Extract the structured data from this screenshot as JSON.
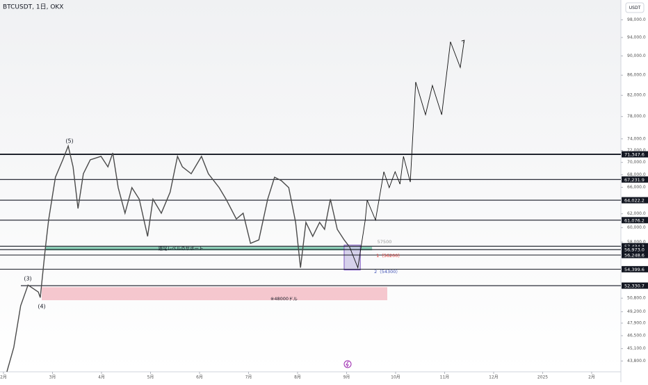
{
  "chart_data": {
    "type": "line",
    "title": "BTCUSDT, 1日, OKX",
    "currency": "USDT",
    "log": true,
    "xlim": [
      -0.071,
      12.596
    ],
    "ylim": [
      42700,
      102700
    ],
    "xticks": [
      {
        "value": 0,
        "label": "2月"
      },
      {
        "value": 1,
        "label": "3月"
      },
      {
        "value": 2,
        "label": "4月"
      },
      {
        "value": 3,
        "label": "5月"
      },
      {
        "value": 4,
        "label": "6月"
      },
      {
        "value": 5,
        "label": "7月"
      },
      {
        "value": 6,
        "label": "8月"
      },
      {
        "value": 7,
        "label": "9月"
      },
      {
        "value": 8,
        "label": "10月"
      },
      {
        "value": 9,
        "label": "11月"
      },
      {
        "value": 10,
        "label": "12月"
      },
      {
        "value": 11,
        "label": "2025"
      },
      {
        "value": 12,
        "label": "2月"
      }
    ],
    "yticks": [
      {
        "value": 98000,
        "label": "98,000.0"
      },
      {
        "value": 94000,
        "label": "94,000.0"
      },
      {
        "value": 90000,
        "label": "90,000.0"
      },
      {
        "value": 86000,
        "label": "86,000.0"
      },
      {
        "value": 82000,
        "label": "82,000.0"
      },
      {
        "value": 78000,
        "label": "78,000.0"
      },
      {
        "value": 74000,
        "label": "74,000.0"
      },
      {
        "value": 72000,
        "label": "72,000.0"
      },
      {
        "value": 70000,
        "label": "70,000.0"
      },
      {
        "value": 68000,
        "label": "68,000.0"
      },
      {
        "value": 66000,
        "label": "66,000.0"
      },
      {
        "value": 62000,
        "label": "62,000.0"
      },
      {
        "value": 60000,
        "label": "60,000.0"
      },
      {
        "value": 58000,
        "label": "58,000.0"
      },
      {
        "value": 50800,
        "label": "50,800.0"
      },
      {
        "value": 49200,
        "label": "49,200.0"
      },
      {
        "value": 47900,
        "label": "47,900.0"
      },
      {
        "value": 46500,
        "label": "46,500.0"
      },
      {
        "value": 45100,
        "label": "45,100.0"
      },
      {
        "value": 43800,
        "label": "43,800.0"
      }
    ],
    "levels": [
      {
        "value": 71347.6,
        "label": "71,347.6"
      },
      {
        "value": 67231.9,
        "label": "67,231.9"
      },
      {
        "value": 64022.2,
        "label": "64,022.2"
      },
      {
        "value": 61076.2,
        "label": "61,076.2"
      },
      {
        "value": 57434.3,
        "label": "57,434.3"
      },
      {
        "value": 56973.0,
        "label": "56,973.0"
      },
      {
        "value": 56248.6,
        "label": "56,248.6"
      },
      {
        "value": 54399.6,
        "label": "54,399.6"
      },
      {
        "value": 52330.7,
        "label": "52,330.7"
      }
    ],
    "series": [
      {
        "color": "#4a4a4a",
        "x": [
          0.07,
          0.21,
          0.35,
          0.5,
          0.71,
          0.75,
          0.85,
          0.92,
          1.06,
          1.21,
          1.32,
          1.42,
          1.52,
          1.63,
          1.77,
          1.99,
          2.13,
          2.23,
          2.34,
          2.48,
          2.62,
          2.77,
          2.94,
          3.05,
          3.22,
          3.4,
          3.55,
          3.65,
          3.83,
          4.04,
          4.18,
          4.4,
          4.54,
          4.75,
          4.89,
          5.04,
          5.21,
          5.39,
          5.53,
          5.67,
          5.82,
          5.96,
          6.06,
          6.17,
          6.31,
          6.45,
          6.55,
          6.67,
          6.81,
          6.95,
          7.06
        ],
        "values": [
          42700,
          45220,
          49900,
          52400,
          51550,
          50880,
          56880,
          61090,
          67590,
          70420,
          72760,
          69270,
          62780,
          68150,
          70420,
          71000,
          69270,
          71580,
          65950,
          62090,
          65950,
          64180,
          58790,
          64180,
          62090,
          65250,
          71000,
          69270,
          68150,
          71000,
          68150,
          65950,
          64180,
          61250,
          62090,
          57820,
          58300,
          64180,
          67590,
          67040,
          65950,
          60760,
          54590,
          60760,
          58790,
          60760,
          59770,
          64180,
          59770,
          58300,
          57350
        ]
      },
      {
        "color": "#111111",
        "x": [
          7.06,
          7.23,
          7.38,
          7.42,
          7.59,
          7.76,
          7.87,
          7.99,
          8.09,
          8.16,
          8.3,
          8.41,
          8.61,
          8.75,
          8.94,
          9.12,
          9.32,
          9.4
        ],
        "values": [
          57350,
          54590,
          61090,
          64030,
          61090,
          68480,
          65950,
          68480,
          66510,
          71000,
          66820,
          84620,
          78340,
          83930,
          78340,
          93060,
          87580,
          93370
        ]
      }
    ],
    "zones": [
      {
        "label": "週足レベルのサポート",
        "color": "#5fb99a",
        "xlim": [
          0.85,
          7.52
        ],
        "ylim": [
          56880,
          57350
        ]
      },
      {
        "label": "※48000ドル",
        "color": "#f3b6bf",
        "xlim": [
          0.78,
          7.83
        ],
        "ylim": [
          50560,
          52140
        ]
      },
      {
        "color": "#c9c3e6",
        "xlim": [
          6.95,
          7.28
        ],
        "ylim": [
          54300,
          57580
        ]
      }
    ],
    "annotations": [
      {
        "text": "(5)",
        "color": "#131722"
      },
      {
        "text": "(3)",
        "color": "#131722"
      },
      {
        "text": "(4)",
        "color": "#131722"
      },
      {
        "text": "57500",
        "color": "#999999"
      },
      {
        "text": "1（56200）",
        "color": "#e53935"
      },
      {
        "text": "2（54300）",
        "color": "#3f51b5"
      }
    ]
  }
}
